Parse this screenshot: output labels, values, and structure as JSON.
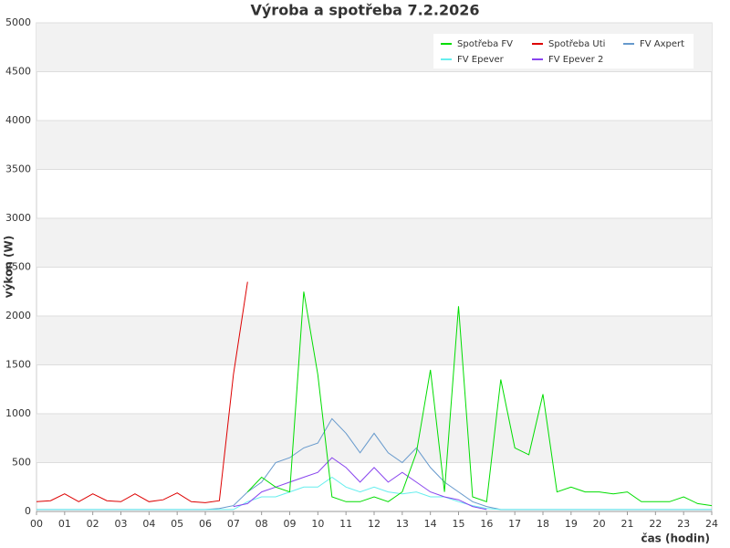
{
  "chart_data": {
    "type": "line",
    "title": "Výroba a spotřeba 7.2.2026",
    "x_label": "čas (hodin)",
    "y_label": "výkon (W)",
    "x": [
      0,
      0.5,
      1,
      1.5,
      2,
      2.5,
      3,
      3.5,
      4,
      4.5,
      5,
      5.5,
      6,
      6.5,
      7,
      7.5,
      8,
      8.5,
      9,
      9.5,
      10,
      10.5,
      11,
      11.5,
      12,
      12.5,
      13,
      13.5,
      14,
      14.5,
      15,
      15.5,
      16,
      16.5,
      17,
      17.5,
      18,
      18.5,
      19,
      19.5,
      20,
      20.5,
      21,
      21.5,
      22,
      22.5,
      23,
      23.5,
      24
    ],
    "series": [
      {
        "name": "Spotřeba FV",
        "color": "#00dd00",
        "values": [
          null,
          null,
          null,
          null,
          null,
          null,
          null,
          null,
          null,
          null,
          null,
          null,
          null,
          null,
          null,
          200,
          350,
          250,
          200,
          2250,
          1400,
          150,
          100,
          100,
          150,
          100,
          200,
          600,
          1450,
          200,
          2100,
          150,
          100,
          1350,
          650,
          580,
          1200,
          200,
          250,
          200,
          200,
          180,
          200,
          100,
          100,
          100,
          150,
          80,
          60
        ]
      },
      {
        "name": "Spotřeba Uti",
        "color": "#dd0000",
        "values": [
          100,
          110,
          180,
          100,
          180,
          110,
          100,
          180,
          100,
          120,
          190,
          100,
          90,
          110,
          1400,
          2350,
          null,
          null,
          null,
          null,
          null,
          null,
          null,
          null,
          null,
          null,
          null,
          null,
          null,
          null,
          null,
          null,
          null,
          null,
          null,
          null,
          null,
          null,
          null,
          null,
          null,
          null,
          null,
          null,
          null,
          null,
          null,
          null,
          null
        ]
      },
      {
        "name": "FV Axpert",
        "color": "#6699cc",
        "values": [
          20,
          20,
          20,
          20,
          20,
          20,
          20,
          20,
          20,
          20,
          20,
          20,
          20,
          30,
          60,
          200,
          300,
          500,
          550,
          650,
          700,
          950,
          800,
          600,
          800,
          600,
          500,
          650,
          450,
          300,
          200,
          100,
          50,
          20,
          20,
          20,
          20,
          20,
          20,
          20,
          20,
          20,
          20,
          20,
          20,
          20,
          20,
          20,
          20
        ]
      },
      {
        "name": "FV Epever",
        "color": "#66eeee",
        "values": [
          20,
          20,
          20,
          20,
          20,
          20,
          20,
          20,
          20,
          20,
          20,
          20,
          20,
          20,
          20,
          100,
          150,
          150,
          200,
          250,
          250,
          350,
          250,
          200,
          250,
          200,
          180,
          200,
          150,
          150,
          100,
          60,
          30,
          20,
          20,
          20,
          20,
          20,
          20,
          20,
          20,
          20,
          20,
          20,
          20,
          20,
          20,
          20,
          20
        ]
      },
      {
        "name": "FV Epever 2",
        "color": "#8844ee",
        "values": [
          null,
          null,
          null,
          null,
          null,
          null,
          null,
          null,
          null,
          null,
          null,
          null,
          null,
          null,
          50,
          80,
          200,
          250,
          300,
          350,
          400,
          550,
          450,
          300,
          450,
          300,
          400,
          300,
          200,
          150,
          120,
          50,
          20,
          null,
          null,
          null,
          null,
          null,
          null,
          null,
          null,
          null,
          null,
          null,
          null,
          null,
          null,
          null,
          null
        ]
      }
    ],
    "xlim": [
      0,
      24
    ],
    "xticks": [
      {
        "value": 0,
        "label": "00"
      },
      {
        "value": 1,
        "label": "01"
      },
      {
        "value": 2,
        "label": "02"
      },
      {
        "value": 3,
        "label": "03"
      },
      {
        "value": 4,
        "label": "04"
      },
      {
        "value": 5,
        "label": "05"
      },
      {
        "value": 6,
        "label": "06"
      },
      {
        "value": 7,
        "label": "07"
      },
      {
        "value": 8,
        "label": "08"
      },
      {
        "value": 9,
        "label": "09"
      },
      10,
      11,
      12,
      13,
      14,
      15,
      16,
      17,
      18,
      19,
      20,
      21,
      22,
      23,
      24
    ],
    "ylim": [
      0,
      5000
    ],
    "yticks": [
      0,
      500,
      1000,
      1500,
      2000,
      2500,
      3000,
      3500,
      4000,
      4500,
      5000
    ],
    "grid": true,
    "legend": "top-right"
  }
}
